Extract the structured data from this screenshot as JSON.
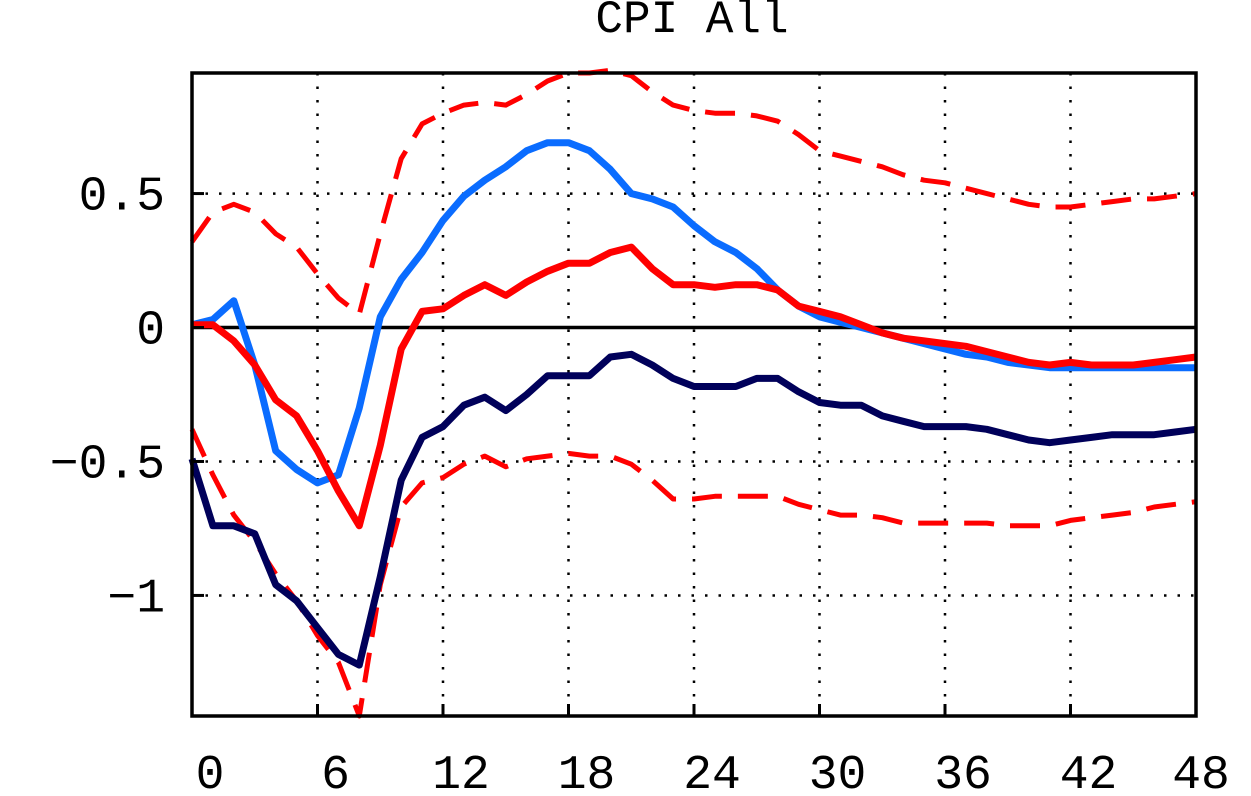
{
  "chart_data": {
    "type": "line",
    "title": "CPI All",
    "xlabel": "",
    "ylabel": "",
    "xlim": [
      0,
      48
    ],
    "ylim": [
      -1.45,
      0.95
    ],
    "x_ticks": [
      0,
      6,
      12,
      18,
      24,
      30,
      36,
      42,
      48
    ],
    "x_tick_labels": [
      "0",
      "6",
      "12",
      "18",
      "24",
      "30",
      "36",
      "42",
      "48"
    ],
    "y_ticks": [
      0.5,
      0,
      -0.5,
      -1
    ],
    "y_tick_labels": [
      "0.5",
      "0",
      "−0.5",
      "−1"
    ],
    "grid": true,
    "zero_line": true,
    "legend": "none",
    "colors": {
      "light_blue": "#0a6cff",
      "red": "#ff0000",
      "navy": "#00005a",
      "band": "#ff0000"
    },
    "series": [
      {
        "style": "dashed-upper",
        "color": "#ff0000",
        "x": [
          0,
          1,
          2,
          3,
          4,
          5,
          6,
          7,
          8,
          9,
          10,
          11,
          12,
          13,
          14,
          15,
          16,
          17,
          18,
          19,
          20,
          21,
          22,
          23,
          24,
          25,
          26,
          27,
          28,
          29,
          30,
          31,
          32,
          33,
          34,
          35,
          36,
          37,
          38,
          39,
          40,
          41,
          42,
          43,
          44,
          45,
          46,
          47,
          48
        ],
        "y": [
          0.32,
          0.43,
          0.46,
          0.43,
          0.35,
          0.3,
          0.2,
          0.11,
          0.05,
          0.35,
          0.63,
          0.76,
          0.8,
          0.83,
          0.84,
          0.83,
          0.87,
          0.92,
          0.95,
          0.95,
          0.96,
          0.94,
          0.88,
          0.83,
          0.81,
          0.8,
          0.8,
          0.79,
          0.77,
          0.72,
          0.66,
          0.64,
          0.62,
          0.6,
          0.57,
          0.55,
          0.54,
          0.52,
          0.5,
          0.48,
          0.46,
          0.45,
          0.45,
          0.46,
          0.47,
          0.48,
          0.48,
          0.49,
          0.5
        ]
      },
      {
        "style": "dashed-lower",
        "color": "#ff0000",
        "x": [
          0,
          1,
          2,
          3,
          4,
          5,
          6,
          7,
          8,
          9,
          10,
          11,
          12,
          13,
          14,
          15,
          16,
          17,
          18,
          19,
          20,
          21,
          22,
          23,
          24,
          25,
          26,
          27,
          28,
          29,
          30,
          31,
          32,
          33,
          34,
          35,
          36,
          37,
          38,
          39,
          40,
          41,
          42,
          43,
          44,
          45,
          46,
          47,
          48
        ],
        "y": [
          -0.38,
          -0.55,
          -0.7,
          -0.8,
          -0.92,
          -1.02,
          -1.15,
          -1.25,
          -1.45,
          -0.96,
          -0.67,
          -0.58,
          -0.56,
          -0.51,
          -0.48,
          -0.52,
          -0.49,
          -0.48,
          -0.47,
          -0.48,
          -0.48,
          -0.51,
          -0.57,
          -0.64,
          -0.64,
          -0.63,
          -0.63,
          -0.63,
          -0.63,
          -0.66,
          -0.68,
          -0.7,
          -0.7,
          -0.71,
          -0.73,
          -0.73,
          -0.73,
          -0.73,
          -0.73,
          -0.74,
          -0.74,
          -0.74,
          -0.72,
          -0.71,
          -0.7,
          -0.69,
          -0.67,
          -0.66,
          -0.65
        ]
      },
      {
        "style": "solid",
        "color": "#0a6cff",
        "x": [
          0,
          1,
          2,
          3,
          4,
          5,
          6,
          7,
          8,
          9,
          10,
          11,
          12,
          13,
          14,
          15,
          16,
          17,
          18,
          19,
          20,
          21,
          22,
          23,
          24,
          25,
          26,
          27,
          28,
          29,
          30,
          31,
          32,
          33,
          34,
          35,
          36,
          37,
          38,
          39,
          40,
          41,
          42,
          43,
          44,
          45,
          46,
          47,
          48
        ],
        "y": [
          0.01,
          0.03,
          0.1,
          -0.14,
          -0.46,
          -0.53,
          -0.58,
          -0.55,
          -0.3,
          0.04,
          0.18,
          0.28,
          0.4,
          0.49,
          0.55,
          0.6,
          0.66,
          0.69,
          0.69,
          0.66,
          0.59,
          0.5,
          0.48,
          0.45,
          0.38,
          0.32,
          0.28,
          0.22,
          0.14,
          0.08,
          0.04,
          0.02,
          0.0,
          -0.02,
          -0.04,
          -0.06,
          -0.08,
          -0.1,
          -0.11,
          -0.13,
          -0.14,
          -0.15,
          -0.15,
          -0.15,
          -0.15,
          -0.15,
          -0.15,
          -0.15,
          -0.15
        ]
      },
      {
        "style": "solid",
        "color": "#ff0000",
        "x": [
          0,
          1,
          2,
          3,
          4,
          5,
          6,
          7,
          8,
          9,
          10,
          11,
          12,
          13,
          14,
          15,
          16,
          17,
          18,
          19,
          20,
          21,
          22,
          23,
          24,
          25,
          26,
          27,
          28,
          29,
          30,
          31,
          32,
          33,
          34,
          35,
          36,
          37,
          38,
          39,
          40,
          41,
          42,
          43,
          44,
          45,
          46,
          47,
          48
        ],
        "y": [
          0.01,
          0.01,
          -0.05,
          -0.14,
          -0.27,
          -0.33,
          -0.46,
          -0.61,
          -0.74,
          -0.44,
          -0.08,
          0.06,
          0.07,
          0.12,
          0.16,
          0.12,
          0.17,
          0.21,
          0.24,
          0.24,
          0.28,
          0.3,
          0.22,
          0.16,
          0.16,
          0.15,
          0.16,
          0.16,
          0.14,
          0.08,
          0.06,
          0.04,
          0.01,
          -0.02,
          -0.04,
          -0.05,
          -0.06,
          -0.07,
          -0.09,
          -0.11,
          -0.13,
          -0.14,
          -0.13,
          -0.14,
          -0.14,
          -0.14,
          -0.13,
          -0.12,
          -0.11
        ]
      },
      {
        "style": "solid",
        "color": "#00005a",
        "x": [
          0,
          1,
          2,
          3,
          4,
          5,
          6,
          7,
          8,
          9,
          10,
          11,
          12,
          13,
          14,
          15,
          16,
          17,
          18,
          19,
          20,
          21,
          22,
          23,
          24,
          25,
          26,
          27,
          28,
          29,
          30,
          31,
          32,
          33,
          34,
          35,
          36,
          37,
          38,
          39,
          40,
          41,
          42,
          43,
          44,
          45,
          46,
          47,
          48
        ],
        "y": [
          -0.49,
          -0.74,
          -0.74,
          -0.77,
          -0.96,
          -1.02,
          -1.12,
          -1.22,
          -1.26,
          -0.93,
          -0.57,
          -0.41,
          -0.37,
          -0.29,
          -0.26,
          -0.31,
          -0.25,
          -0.18,
          -0.18,
          -0.18,
          -0.11,
          -0.1,
          -0.14,
          -0.19,
          -0.22,
          -0.22,
          -0.22,
          -0.19,
          -0.19,
          -0.24,
          -0.28,
          -0.29,
          -0.29,
          -0.33,
          -0.35,
          -0.37,
          -0.37,
          -0.37,
          -0.38,
          -0.4,
          -0.42,
          -0.43,
          -0.42,
          -0.41,
          -0.4,
          -0.4,
          -0.4,
          -0.39,
          -0.38
        ]
      }
    ]
  }
}
